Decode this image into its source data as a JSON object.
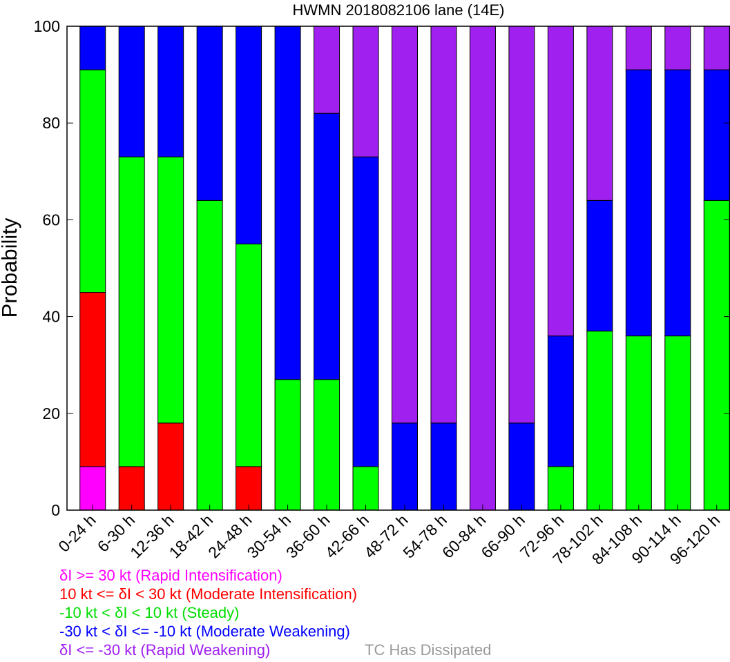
{
  "chart_data": {
    "type": "bar",
    "stacked": true,
    "title": "HWMN 2018082106 lane (14E)",
    "xlabel": "",
    "ylabel": "Probability",
    "ylim": [
      0,
      100
    ],
    "yticks": [
      0,
      20,
      40,
      60,
      80,
      100
    ],
    "categories": [
      "0-24 h",
      "6-30 h",
      "12-36 h",
      "18-42 h",
      "24-48 h",
      "30-54 h",
      "36-60 h",
      "42-66 h",
      "48-72 h",
      "54-78 h",
      "60-84 h",
      "66-90 h",
      "72-96 h",
      "78-102 h",
      "84-108 h",
      "90-114 h",
      "96-120 h"
    ],
    "series": [
      {
        "name": "δI >= 30 kt (Rapid Intensification)",
        "color": "#ff00ff",
        "values": [
          9,
          0,
          0,
          0,
          0,
          0,
          0,
          0,
          0,
          0,
          0,
          0,
          0,
          0,
          0,
          0,
          0
        ]
      },
      {
        "name": "10 kt <= δI < 30 kt (Moderate Intensification)",
        "color": "#ff0000",
        "values": [
          36,
          9,
          18,
          0,
          9,
          0,
          0,
          0,
          0,
          0,
          0,
          0,
          0,
          0,
          0,
          0,
          0
        ]
      },
      {
        "name": "-10 kt < δI < 10 kt (Steady)",
        "color": "#00ff00",
        "values": [
          46,
          64,
          55,
          64,
          46,
          27,
          27,
          9,
          0,
          0,
          0,
          0,
          9,
          37,
          36,
          36,
          64
        ]
      },
      {
        "name": "-30 kt < δI <= -10 kt (Moderate Weakening)",
        "color": "#0000ff",
        "values": [
          9,
          27,
          27,
          36,
          45,
          73,
          55,
          64,
          18,
          18,
          0,
          18,
          27,
          27,
          55,
          55,
          27
        ]
      },
      {
        "name": "δI <= -30 kt (Rapid Weakening)",
        "color": "#a020f0",
        "values": [
          0,
          0,
          0,
          0,
          0,
          0,
          18,
          27,
          82,
          82,
          100,
          82,
          64,
          36,
          9,
          9,
          9
        ]
      }
    ],
    "extra_legend": {
      "name": "TC Has Dissipated",
      "color": "#999999"
    },
    "grid": false,
    "legend_position": "bottom-left"
  }
}
